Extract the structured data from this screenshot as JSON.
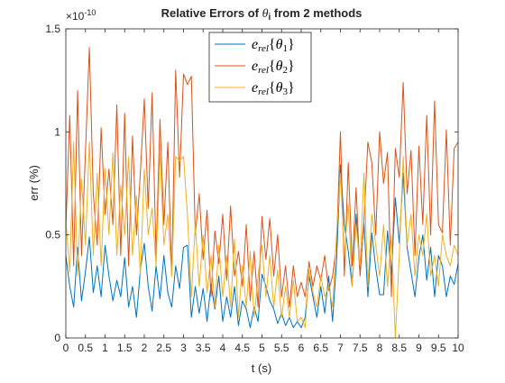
{
  "chart_data": {
    "type": "line",
    "title_prefix": "Relative Errors of ",
    "title_symbol": "θ",
    "title_subscript": "i",
    "title_suffix": " from 2 methods",
    "xlabel": "t (s)",
    "ylabel": "err (%)",
    "xlim": [
      0,
      10
    ],
    "ylim": [
      0,
      1.5
    ],
    "y_exponent_label": "×10",
    "y_exponent_power": "-10",
    "xticks": [
      0,
      0.5,
      1,
      1.5,
      2,
      2.5,
      3,
      3.5,
      4,
      4.5,
      5,
      5.5,
      6,
      6.5,
      7,
      7.5,
      8,
      8.5,
      9,
      9.5,
      10
    ],
    "xtick_labels": [
      "0",
      "0.5",
      "1",
      "1.5",
      "2",
      "2.5",
      "3",
      "3.5",
      "4",
      "4.5",
      "5",
      "5.5",
      "6",
      "6.5",
      "7",
      "7.5",
      "8",
      "8.5",
      "9",
      "9.5",
      "10"
    ],
    "yticks": [
      0,
      0.5,
      1,
      1.5
    ],
    "ytick_labels": [
      "0",
      "0.5",
      "1",
      "1.5"
    ],
    "legend_location": "top-center",
    "grid": false,
    "x": [
      0.0,
      0.1,
      0.2,
      0.3,
      0.4,
      0.5,
      0.6,
      0.7,
      0.8,
      0.9,
      1.0,
      1.1,
      1.2,
      1.3,
      1.4,
      1.5,
      1.6,
      1.7,
      1.8,
      1.9,
      2.0,
      2.1,
      2.2,
      2.3,
      2.4,
      2.5,
      2.6,
      2.7,
      2.8,
      2.9,
      3.0,
      3.1,
      3.2,
      3.3,
      3.4,
      3.5,
      3.6,
      3.7,
      3.8,
      3.9,
      4.0,
      4.1,
      4.2,
      4.3,
      4.4,
      4.5,
      4.6,
      4.7,
      4.8,
      4.9,
      5.0,
      5.1,
      5.2,
      5.3,
      5.4,
      5.5,
      5.6,
      5.7,
      5.8,
      5.9,
      6.0,
      6.1,
      6.2,
      6.3,
      6.4,
      6.5,
      6.6,
      6.7,
      6.8,
      6.9,
      7.0,
      7.1,
      7.2,
      7.3,
      7.4,
      7.5,
      7.6,
      7.7,
      7.8,
      7.9,
      8.0,
      8.1,
      8.2,
      8.3,
      8.4,
      8.5,
      8.6,
      8.7,
      8.8,
      8.9,
      9.0,
      9.1,
      9.2,
      9.3,
      9.4,
      9.5,
      9.6,
      9.7,
      9.8,
      9.9,
      10.0
    ],
    "series": [
      {
        "legend_base": "e",
        "legend_sub": "rel",
        "legend_arg": "θ",
        "legend_arg_sub": "1",
        "color": "#0072BD",
        "values": [
          0.4,
          0.25,
          0.15,
          0.44,
          0.18,
          0.32,
          0.49,
          0.22,
          0.35,
          0.2,
          0.45,
          0.3,
          0.18,
          0.28,
          0.2,
          0.39,
          0.15,
          0.25,
          0.1,
          0.33,
          0.46,
          0.25,
          0.13,
          0.35,
          0.19,
          0.4,
          0.22,
          0.15,
          0.35,
          0.24,
          0.44,
          0.45,
          0.1,
          0.25,
          0.12,
          0.24,
          0.08,
          0.26,
          0.14,
          0.3,
          0.08,
          0.2,
          0.1,
          0.25,
          0.06,
          0.18,
          0.14,
          0.05,
          0.15,
          0.08,
          0.31,
          0.25,
          0.18,
          0.14,
          0.07,
          0.12,
          0.06,
          0.1,
          0.05,
          0.08,
          0.05,
          0.1,
          0.3,
          0.2,
          0.1,
          0.25,
          0.12,
          0.3,
          0.08,
          0.37,
          0.84,
          0.55,
          0.42,
          0.25,
          0.6,
          0.31,
          0.56,
          0.2,
          0.51,
          0.34,
          0.21,
          0.21,
          0.52,
          0.31,
          0.68,
          0.46,
          0.8,
          0.44,
          0.32,
          0.2,
          0.39,
          0.5,
          0.28,
          0.44,
          0.2,
          0.4,
          0.35,
          0.2,
          0.3,
          0.26,
          0.36
        ]
      },
      {
        "legend_base": "e",
        "legend_sub": "rel",
        "legend_arg": "θ",
        "legend_arg_sub": "2",
        "color": "#D95319",
        "values": [
          0.53,
          1.08,
          0.35,
          1.2,
          0.4,
          0.9,
          1.41,
          0.7,
          0.45,
          1.02,
          0.6,
          0.82,
          0.55,
          1.13,
          0.4,
          1.09,
          0.35,
          0.98,
          0.5,
          0.8,
          1.16,
          0.63,
          1.19,
          0.4,
          1.06,
          0.55,
          0.95,
          0.3,
          1.3,
          0.78,
          1.28,
          1.23,
          1.27,
          0.5,
          0.7,
          0.38,
          0.62,
          0.2,
          0.52,
          0.36,
          0.6,
          0.28,
          0.64,
          0.3,
          0.42,
          0.25,
          0.55,
          0.18,
          0.42,
          0.15,
          0.59,
          0.38,
          0.58,
          0.3,
          0.5,
          0.2,
          0.35,
          0.15,
          0.35,
          0.2,
          0.27,
          0.2,
          0.37,
          0.25,
          0.35,
          0.28,
          0.4,
          0.23,
          0.3,
          0.45,
          1.0,
          0.3,
          0.85,
          0.35,
          0.73,
          0.3,
          0.57,
          0.95,
          0.85,
          0.5,
          1.0,
          0.75,
          0.9,
          0.2,
          0.92,
          0.78,
          1.24,
          0.7,
          0.91,
          0.4,
          0.93,
          0.55,
          1.08,
          0.5,
          1.15,
          0.55,
          0.51,
          1.01,
          0.45,
          0.92,
          0.95
        ]
      },
      {
        "legend_base": "e",
        "legend_sub": "rel",
        "legend_arg": "θ",
        "legend_arg_sub": "3",
        "color": "#EDB120",
        "values": [
          0.57,
          0.32,
          0.95,
          0.3,
          0.77,
          0.45,
          0.95,
          0.4,
          0.8,
          0.35,
          0.82,
          0.5,
          0.9,
          0.4,
          0.74,
          0.5,
          0.88,
          0.4,
          0.69,
          0.3,
          0.82,
          0.5,
          0.63,
          0.35,
          0.9,
          0.45,
          0.6,
          0.3,
          0.88,
          0.86,
          0.88,
          0.6,
          0.2,
          0.55,
          0.25,
          0.5,
          0.22,
          0.4,
          0.15,
          0.45,
          0.2,
          0.4,
          0.15,
          0.48,
          0.1,
          0.35,
          0.15,
          0.42,
          0.1,
          0.3,
          0.45,
          0.2,
          0.4,
          0.15,
          0.33,
          0.1,
          0.25,
          0.1,
          0.28,
          0.08,
          0.1,
          0.05,
          0.33,
          0.22,
          0.15,
          0.3,
          0.2,
          0.25,
          0.15,
          0.5,
          0.8,
          0.4,
          0.65,
          0.25,
          0.55,
          0.35,
          0.8,
          0.25,
          0.6,
          0.45,
          0.3,
          0.55,
          0.25,
          0.5,
          0.0,
          0.4,
          0.88,
          0.45,
          0.6,
          0.3,
          0.5,
          0.4,
          0.6,
          0.3,
          0.4,
          0.25,
          0.5,
          0.4,
          0.35,
          0.45,
          0.4
        ]
      }
    ]
  }
}
